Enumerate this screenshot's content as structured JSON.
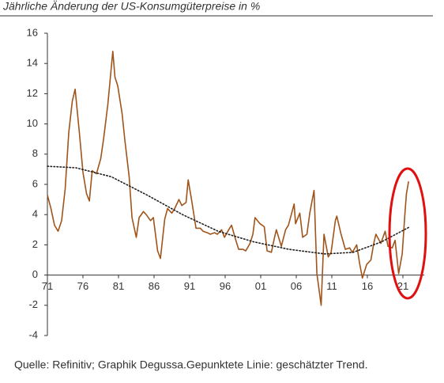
{
  "chart_data": {
    "type": "line",
    "title": "Jährliche Änderung der US-Konsumgüterpreise in %",
    "note": "Quelle: Refinitiv; Graphik Degussa.Gepunktete Linie: geschätzter Trend.",
    "xlim": [
      1971,
      2024
    ],
    "ylim": [
      -4,
      16
    ],
    "yticks": [
      -4,
      -2,
      0,
      2,
      4,
      6,
      8,
      10,
      12,
      14,
      16
    ],
    "xticks": [
      {
        "value": 1971,
        "label": "71"
      },
      {
        "value": 1976,
        "label": "76"
      },
      {
        "value": 1981,
        "label": "81"
      },
      {
        "value": 1986,
        "label": "86"
      },
      {
        "value": 1991,
        "label": "91"
      },
      {
        "value": 1996,
        "label": "96"
      },
      {
        "value": 2001,
        "label": "01"
      },
      {
        "value": 2006,
        "label": "06"
      },
      {
        "value": 2011,
        "label": "11"
      },
      {
        "value": 2016,
        "label": "16"
      },
      {
        "value": 2021,
        "label": "21"
      }
    ],
    "grid": false,
    "series": [
      {
        "color": "#a0541a",
        "dash": "solid",
        "x": [
          1971.0,
          1971.5,
          1972.0,
          1972.5,
          1973.0,
          1973.5,
          1974.0,
          1974.5,
          1974.9,
          1975.5,
          1976.0,
          1976.5,
          1976.9,
          1977.3,
          1977.9,
          1978.5,
          1978.9,
          1979.5,
          1980.2,
          1980.5,
          1980.9,
          1981.5,
          1981.9,
          1982.5,
          1982.9,
          1983.5,
          1983.9,
          1984.5,
          1984.9,
          1985.5,
          1985.9,
          1986.5,
          1986.9,
          1987.5,
          1987.9,
          1988.5,
          1988.9,
          1989.5,
          1989.9,
          1990.5,
          1990.8,
          1991.3,
          1991.9,
          1992.5,
          1992.9,
          1993.5,
          1993.9,
          1994.5,
          1994.9,
          1995.5,
          1995.9,
          1996.5,
          1996.9,
          1997.5,
          1997.9,
          1998.5,
          1998.9,
          1999.5,
          1999.9,
          2000.2,
          2000.9,
          2001.5,
          2001.9,
          2002.5,
          2002.9,
          2003.2,
          2003.9,
          2004.5,
          2004.9,
          2005.7,
          2005.9,
          2006.5,
          2006.9,
          2007.5,
          2007.9,
          2008.5,
          2008.9,
          2009.5,
          2009.9,
          2010.5,
          2010.9,
          2011.5,
          2011.7,
          2012.3,
          2012.9,
          2013.5,
          2013.9,
          2014.5,
          2014.9,
          2015.3,
          2015.9,
          2016.5,
          2016.9,
          2017.2,
          2017.9,
          2018.5,
          2018.9,
          2019.5,
          2019.9,
          2020.4,
          2020.9,
          2021.3,
          2021.5,
          2021.8
        ],
        "values": [
          5.3,
          4.4,
          3.3,
          2.9,
          3.6,
          5.7,
          9.4,
          11.5,
          12.3,
          9.4,
          6.8,
          5.4,
          4.9,
          6.9,
          6.7,
          7.7,
          9.0,
          11.3,
          14.8,
          13.1,
          12.5,
          10.7,
          8.9,
          6.5,
          3.8,
          2.5,
          3.8,
          4.2,
          4.0,
          3.6,
          3.8,
          1.6,
          1.1,
          3.7,
          4.4,
          4.1,
          4.4,
          5.0,
          4.6,
          4.8,
          6.3,
          4.9,
          3.1,
          3.1,
          2.9,
          2.8,
          2.7,
          2.8,
          2.7,
          3.0,
          2.5,
          3.0,
          3.3,
          2.3,
          1.7,
          1.7,
          1.6,
          2.1,
          2.7,
          3.8,
          3.4,
          3.2,
          1.6,
          1.5,
          2.4,
          3.0,
          1.9,
          3.0,
          3.3,
          4.7,
          3.4,
          4.1,
          2.5,
          2.7,
          4.1,
          5.6,
          0.1,
          -2.0,
          2.7,
          1.2,
          1.5,
          3.6,
          3.9,
          2.7,
          1.7,
          1.8,
          1.5,
          2.0,
          0.8,
          -0.2,
          0.7,
          1.0,
          2.1,
          2.7,
          2.1,
          2.9,
          1.9,
          1.8,
          2.3,
          0.1,
          1.4,
          4.2,
          5.4,
          6.2
        ]
      },
      {
        "color": "#222222",
        "dash": "dotted",
        "x": [
          1971,
          1975,
          1980,
          1985,
          1990,
          1995,
          2000,
          2005,
          2010,
          2014,
          2018,
          2022
        ],
        "values": [
          7.2,
          7.1,
          6.5,
          5.3,
          4.0,
          2.9,
          2.2,
          1.7,
          1.4,
          1.5,
          2.2,
          3.2
        ]
      }
    ]
  }
}
